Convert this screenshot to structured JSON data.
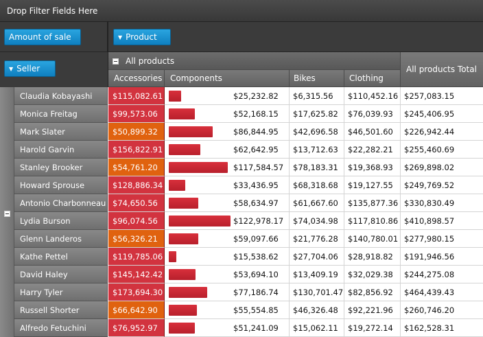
{
  "filter_area": {
    "label": "Drop Filter Fields Here"
  },
  "data_field": {
    "label": "Amount of sale"
  },
  "column_field": {
    "label": "Product"
  },
  "row_field": {
    "label": "Seller"
  },
  "columns": {
    "group_label": "All products",
    "items": [
      "Accessories",
      "Components",
      "Bikes",
      "Clothing"
    ],
    "total_label": "All products Total"
  },
  "colors": {
    "accessories_red": "#d2333f",
    "accessories_orange": "#e0620f",
    "bar_red": "#c8242f",
    "field_blue": "#1a93d3"
  },
  "rows": [
    {
      "seller": "Claudia Kobayashi",
      "accessories": "$115,082.61",
      "acc_color": "red",
      "components": "$25,232.82",
      "bikes": "$6,315.56",
      "clothing": "$110,452.16",
      "total": "$257,083.15"
    },
    {
      "seller": "Monica Freitag",
      "accessories": "$99,573.06",
      "acc_color": "red",
      "components": "$52,168.15",
      "bikes": "$17,625.82",
      "clothing": "$76,039.93",
      "total": "$245,406.95"
    },
    {
      "seller": "Mark Slater",
      "accessories": "$50,899.32",
      "acc_color": "orange",
      "components": "$86,844.95",
      "bikes": "$42,696.58",
      "clothing": "$46,501.60",
      "total": "$226,942.44"
    },
    {
      "seller": "Harold Garvin",
      "accessories": "$156,822.91",
      "acc_color": "red",
      "components": "$62,642.95",
      "bikes": "$13,712.63",
      "clothing": "$22,282.21",
      "total": "$255,460.69"
    },
    {
      "seller": "Stanley Brooker",
      "accessories": "$54,761.20",
      "acc_color": "orange",
      "components": "$117,584.57",
      "bikes": "$78,183.31",
      "clothing": "$19,368.93",
      "total": "$269,898.02"
    },
    {
      "seller": "Howard Sprouse",
      "accessories": "$128,886.34",
      "acc_color": "red",
      "components": "$33,436.95",
      "bikes": "$68,318.68",
      "clothing": "$19,127.55",
      "total": "$249,769.52"
    },
    {
      "seller": "Antonio Charbonneau",
      "accessories": "$74,650.56",
      "acc_color": "red",
      "components": "$58,634.97",
      "bikes": "$61,667.60",
      "clothing": "$135,877.36",
      "total": "$330,830.49"
    },
    {
      "seller": "Lydia Burson",
      "accessories": "$96,074.56",
      "acc_color": "red",
      "components": "$122,978.17",
      "bikes": "$74,034.98",
      "clothing": "$117,810.86",
      "total": "$410,898.57"
    },
    {
      "seller": "Glenn Landeros",
      "accessories": "$56,326.21",
      "acc_color": "orange",
      "components": "$59,097.66",
      "bikes": "$21,776.28",
      "clothing": "$140,780.01",
      "total": "$277,980.15"
    },
    {
      "seller": "Kathe Pettel",
      "accessories": "$119,785.06",
      "acc_color": "red",
      "components": "$15,538.62",
      "bikes": "$27,704.06",
      "clothing": "$28,918.82",
      "total": "$191,946.56"
    },
    {
      "seller": "David Haley",
      "accessories": "$145,142.42",
      "acc_color": "red",
      "components": "$53,694.10",
      "bikes": "$13,409.19",
      "clothing": "$32,029.38",
      "total": "$244,275.08"
    },
    {
      "seller": "Harry Tyler",
      "accessories": "$173,694.30",
      "acc_color": "red",
      "components": "$77,186.74",
      "bikes": "$130,701.47",
      "clothing": "$82,856.92",
      "total": "$464,439.43"
    },
    {
      "seller": "Russell Shorter",
      "accessories": "$66,642.90",
      "acc_color": "orange",
      "components": "$55,554.85",
      "bikes": "$46,326.48",
      "clothing": "$92,221.96",
      "total": "$260,746.20"
    },
    {
      "seller": "Alfredo Fetuchini",
      "accessories": "$76,952.97",
      "acc_color": "red",
      "components": "$51,241.09",
      "bikes": "$15,062.11",
      "clothing": "$19,272.14",
      "total": "$162,528.31"
    }
  ]
}
